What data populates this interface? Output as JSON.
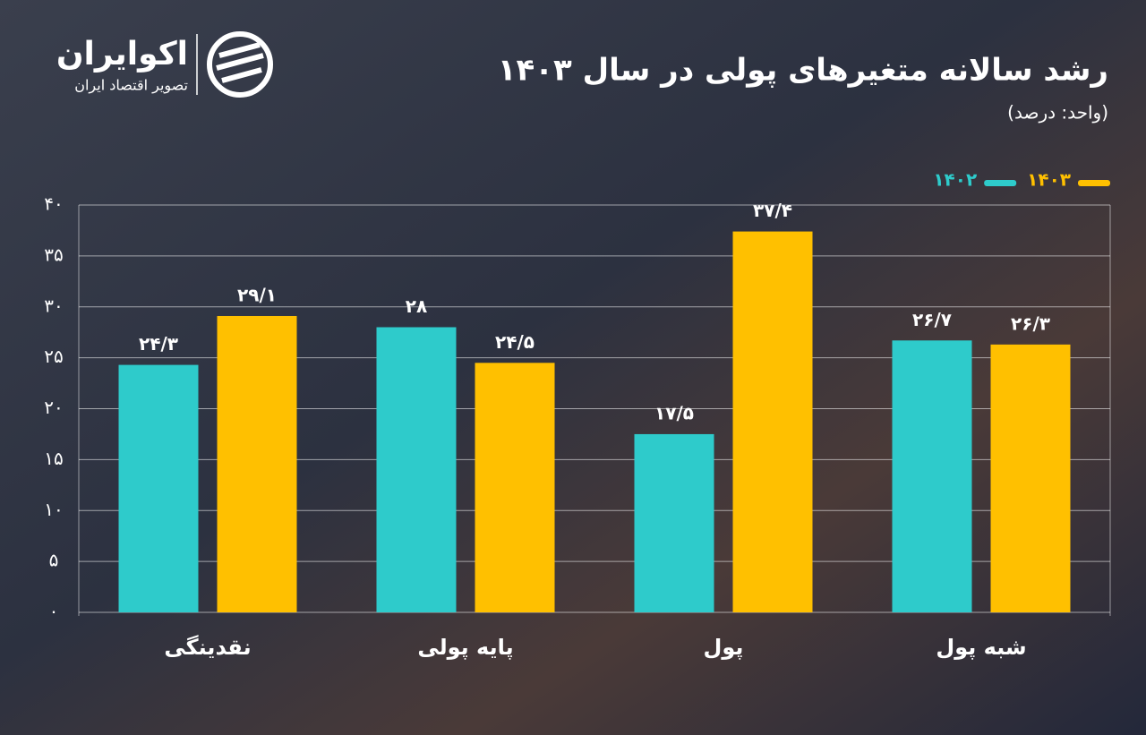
{
  "logo": {
    "name": "اکوایران",
    "tagline": "تصویر اقتصاد ایران"
  },
  "chart_data": {
    "type": "bar",
    "title": "رشد سالانه متغیرهای پولی در سال ۱۴۰۳",
    "subtitle": "(واحد: درصد)",
    "categories": [
      "نقدینگی",
      "پایه پولی",
      "پول",
      "شبه پول"
    ],
    "series": [
      {
        "name": "۱۴۰۲",
        "color": "#2ecbcb",
        "values": [
          24.3,
          28,
          17.5,
          26.7
        ],
        "value_labels": [
          "۲۴/۳",
          "۲۸",
          "۱۷/۵",
          "۲۶/۷"
        ]
      },
      {
        "name": "۱۴۰۳",
        "color": "#ffc000",
        "values": [
          29.1,
          24.5,
          37.4,
          26.3
        ],
        "value_labels": [
          "۲۹/۱",
          "۲۴/۵",
          "۳۷/۴",
          "۲۶/۳"
        ]
      }
    ],
    "ylim": [
      0,
      40
    ],
    "yticks": [
      {
        "value": 0,
        "label": "۰"
      },
      {
        "value": 5,
        "label": "۵"
      },
      {
        "value": 10,
        "label": "۱۰"
      },
      {
        "value": 15,
        "label": "۱۵"
      },
      {
        "value": 20,
        "label": "۲۰"
      },
      {
        "value": 25,
        "label": "۲۵"
      },
      {
        "value": 30,
        "label": "۳۰"
      },
      {
        "value": 35,
        "label": "۳۵"
      },
      {
        "value": 40,
        "label": "۴۰"
      }
    ],
    "grid": true,
    "legend": "top-right"
  }
}
